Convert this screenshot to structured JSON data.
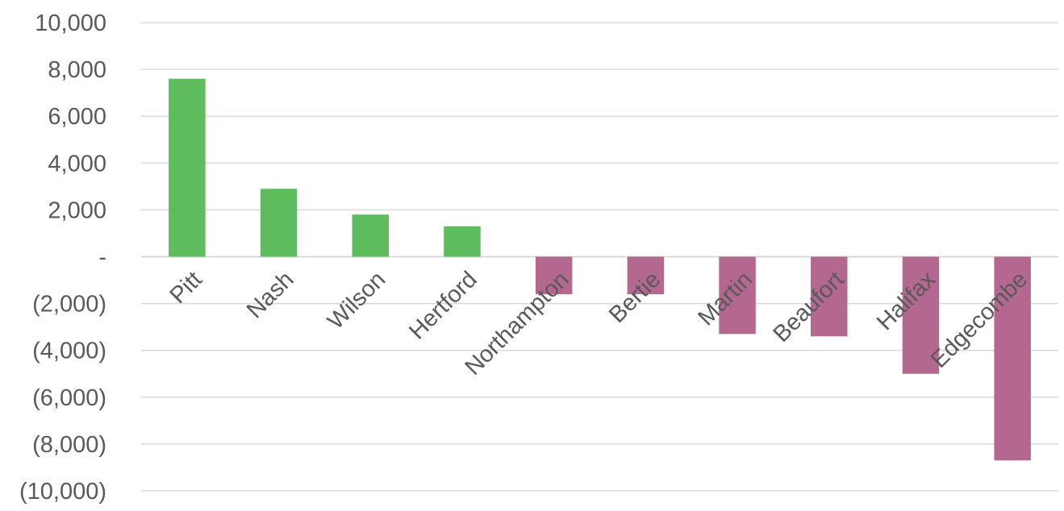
{
  "chart_data": {
    "type": "bar",
    "title": "",
    "xlabel": "",
    "ylabel": "",
    "ylim": [
      -10000,
      10000
    ],
    "ytick_step": 2000,
    "ytick_labels": [
      "10,000",
      "8,000",
      "6,000",
      "4,000",
      "2,000",
      "-",
      "(2,000)",
      "(4,000)",
      "(6,000)",
      "(8,000)",
      "(10,000)"
    ],
    "grid": true,
    "legend": "none",
    "categories": [
      "Pitt",
      "Nash",
      "Wilson",
      "Hertford",
      "Northampton",
      "Bertie",
      "Martin",
      "Beaufort",
      "Halifax",
      "Edgecombe"
    ],
    "values": [
      7600,
      2900,
      1800,
      1300,
      -1600,
      -1600,
      -3300,
      -3400,
      -5000,
      -8700
    ],
    "colors": {
      "positive": "#5dbd5d",
      "negative": "#b5688f"
    }
  }
}
